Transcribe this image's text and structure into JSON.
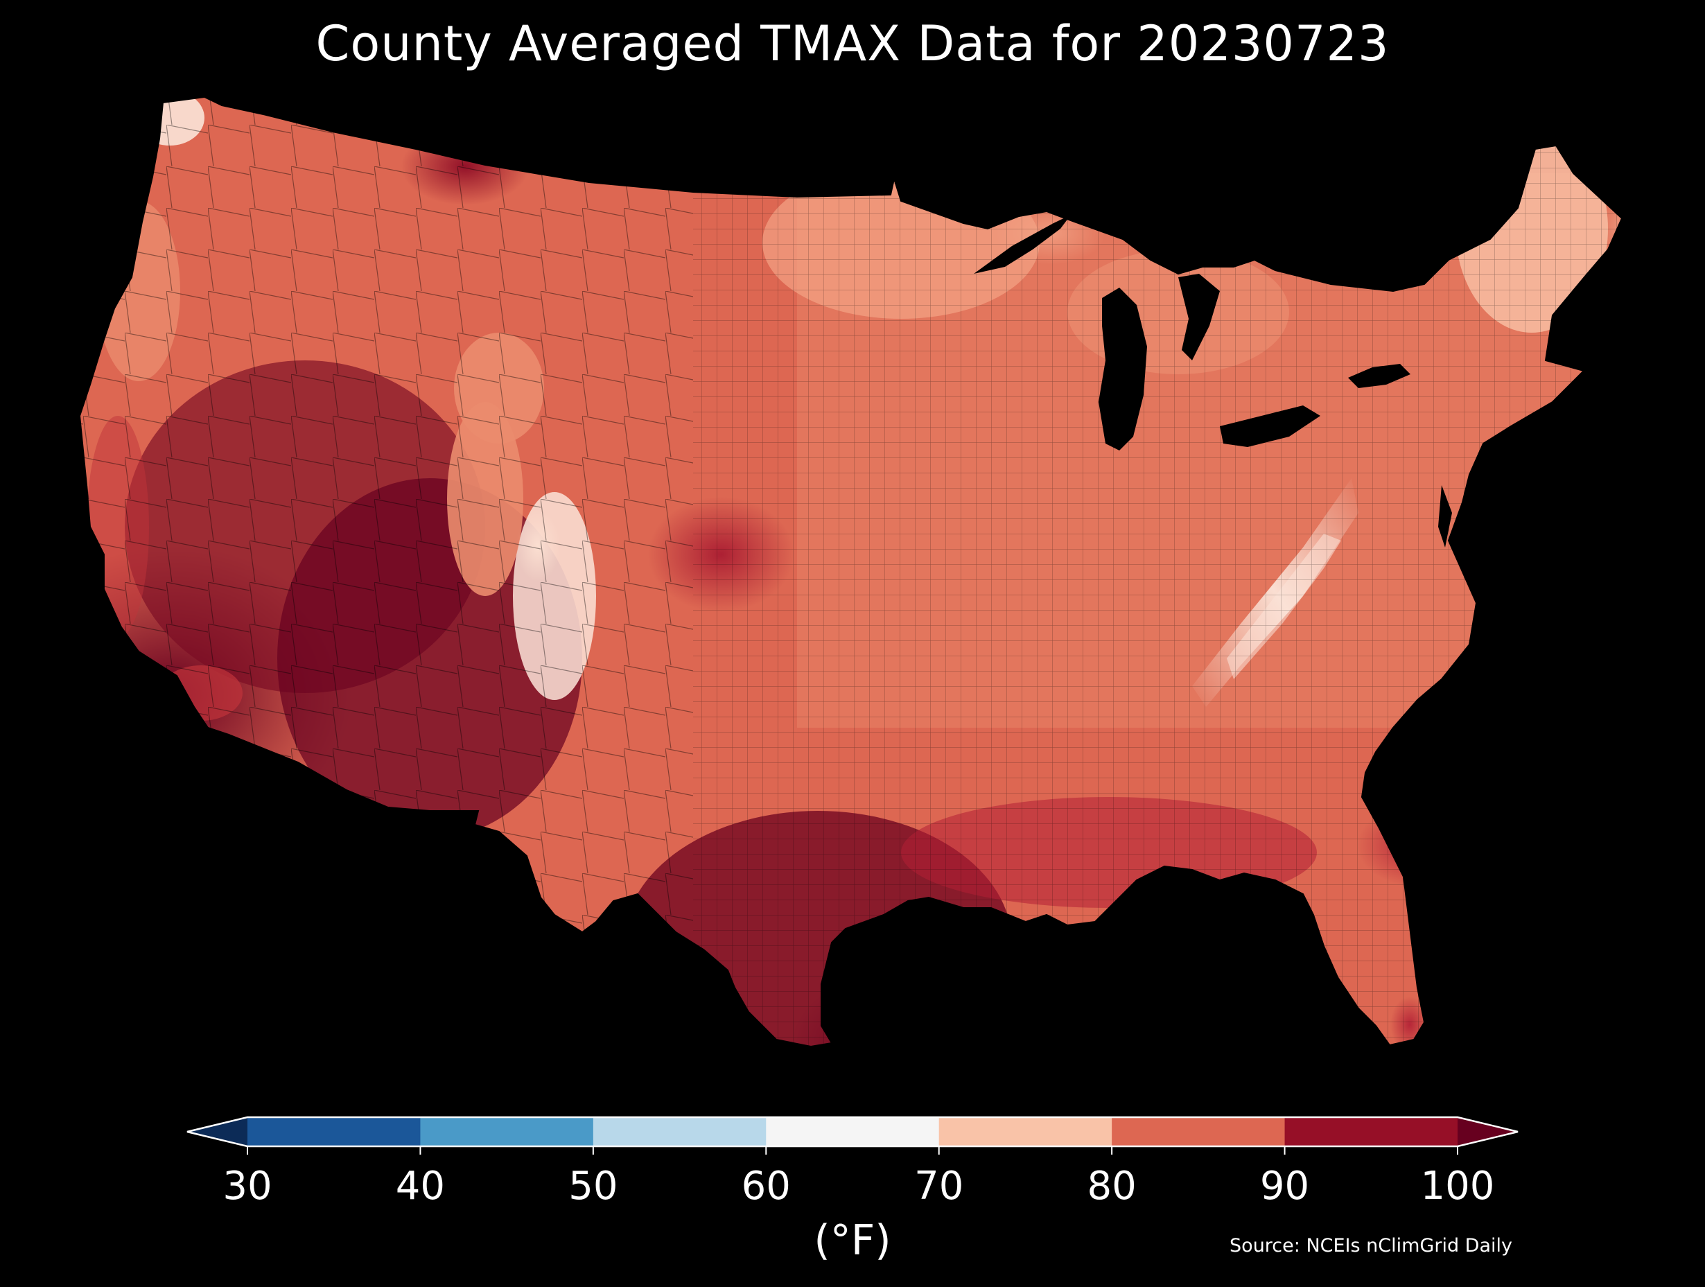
{
  "title": "County Averaged TMAX Data for 20230723",
  "colorbar": {
    "ticks": [
      "30",
      "40",
      "50",
      "60",
      "70",
      "80",
      "90",
      "100"
    ],
    "bins": [
      {
        "range": [
          30,
          40
        ],
        "color": "#1b5799"
      },
      {
        "range": [
          40,
          50
        ],
        "color": "#4a9ac8"
      },
      {
        "range": [
          50,
          60
        ],
        "color": "#b8d8ea"
      },
      {
        "range": [
          60,
          70
        ],
        "color": "#f5f5f5"
      },
      {
        "range": [
          70,
          80
        ],
        "color": "#f9c3a8"
      },
      {
        "range": [
          80,
          90
        ],
        "color": "#dd6752"
      },
      {
        "range": [
          90,
          100
        ],
        "color": "#960f27"
      }
    ],
    "under_color": "#0c2b57",
    "over_color": "#67001f",
    "unit": "(°F)",
    "extend": "both"
  },
  "source": "Source: NCEIs nClimGrid Daily",
  "map": {
    "region": "Contiguous United States",
    "colors": {
      "hottest": "#67001f",
      "hot": "#960f27",
      "warm": "#c0333a",
      "mild": "#dd6752",
      "moderate": "#eb8c6e",
      "cool": "#f9c3a8",
      "coolest": "#fbe4d8"
    }
  }
}
